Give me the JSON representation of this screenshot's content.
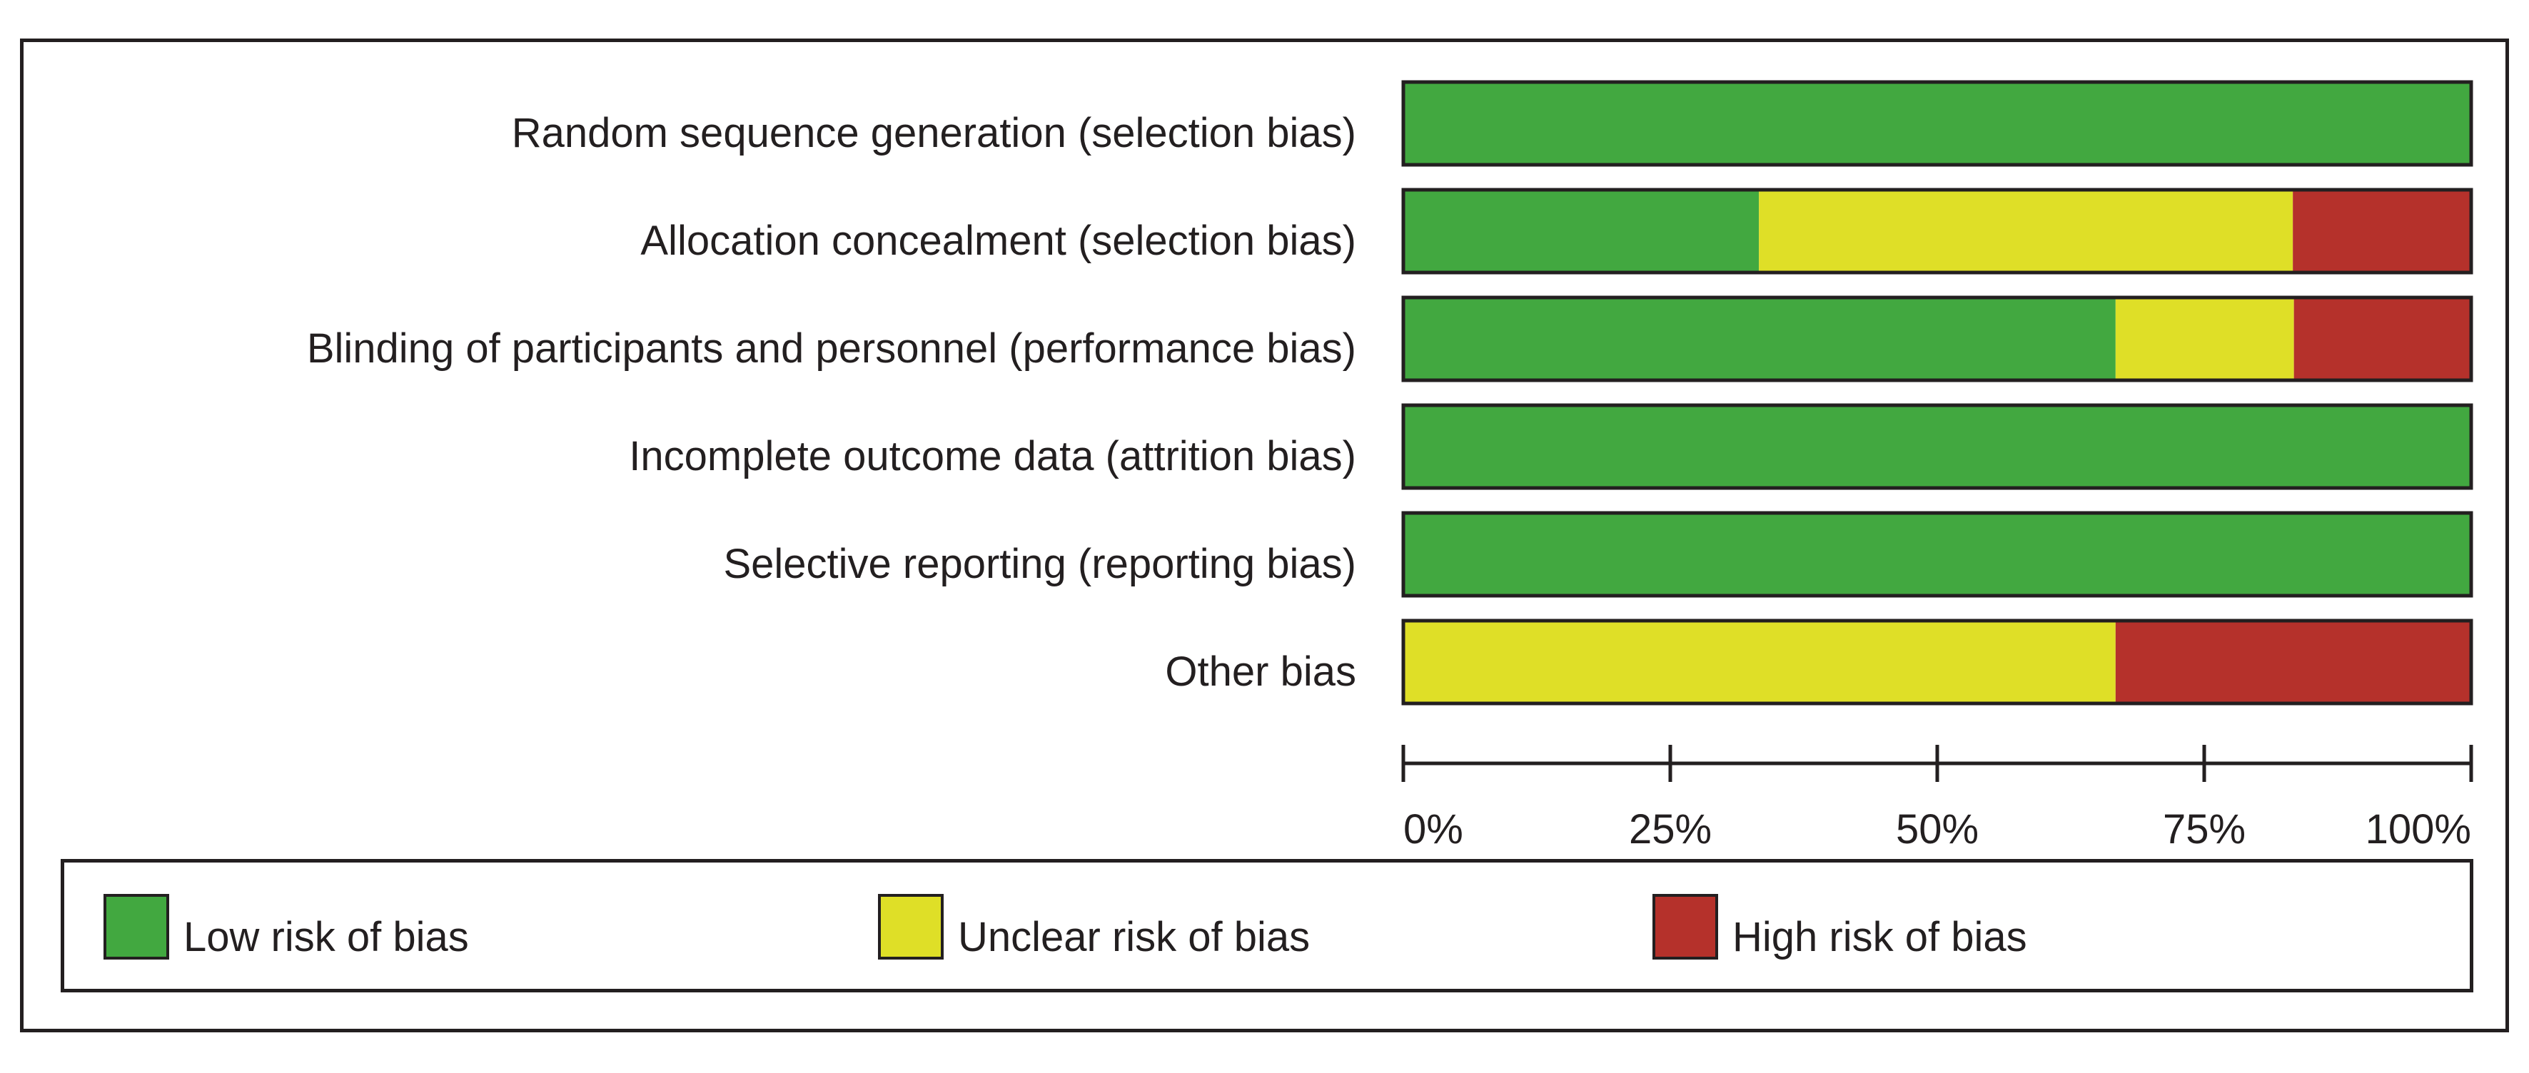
{
  "chart_data": {
    "type": "bar",
    "orientation": "horizontal",
    "stacked": true,
    "categories": [
      "Random sequence generation (selection bias)",
      "Allocation concealment (selection bias)",
      "Blinding of participants and personnel (performance bias)",
      "Incomplete outcome data (attrition bias)",
      "Selective reporting (reporting bias)",
      "Other bias"
    ],
    "series": [
      {
        "name": "Low risk of bias",
        "color": "#42a840",
        "values": [
          100,
          33.3,
          66.7,
          100,
          100,
          0
        ]
      },
      {
        "name": "Unclear risk of bias",
        "color": "#dfdf27",
        "values": [
          0,
          50,
          16.7,
          0,
          0,
          66.7
        ]
      },
      {
        "name": "High risk of bias",
        "color": "#b5312b",
        "values": [
          0,
          16.7,
          16.7,
          0,
          0,
          33.3
        ]
      }
    ],
    "xlim": [
      0,
      100
    ],
    "xticks": [
      0,
      25,
      50,
      75,
      100
    ],
    "xtick_labels": [
      "0%",
      "25%",
      "50%",
      "75%",
      "100%"
    ],
    "legend_position": "bottom",
    "grid": false
  }
}
